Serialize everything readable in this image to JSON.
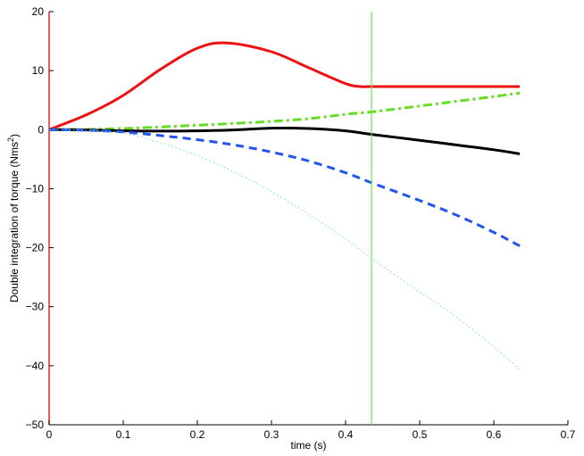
{
  "chart_data": {
    "type": "line",
    "xlabel": "time (s)",
    "ylabel_prefix": "Double integration of torque (Nms",
    "ylabel_sup": "2",
    "ylabel_suffix": ")",
    "xlim": [
      0,
      0.7
    ],
    "ylim": [
      -50,
      20
    ],
    "xticks": [
      0,
      0.1,
      0.2,
      0.3,
      0.4,
      0.5,
      0.6,
      0.7
    ],
    "xtick_labels": [
      "0",
      "0.1",
      "0.2",
      "0.3",
      "0.4",
      "0.5",
      "0.6",
      "0.7"
    ],
    "yticks": [
      -50,
      -40,
      -30,
      -20,
      -10,
      0,
      10,
      20
    ],
    "ytick_labels": [
      "−50",
      "−40",
      "−30",
      "−20",
      "−10",
      "0",
      "10",
      "20"
    ],
    "grid": false,
    "vertical_line": {
      "x": 0.435,
      "color": "#66ee44"
    },
    "series": [
      {
        "color": "#ee1111",
        "style": "solid",
        "width": 3,
        "x": [
          0,
          0.05,
          0.1,
          0.15,
          0.2,
          0.24,
          0.3,
          0.35,
          0.4,
          0.42,
          0.435,
          0.5,
          0.55,
          0.6,
          0.635
        ],
        "y": [
          0,
          2.5,
          5.8,
          10.2,
          13.8,
          14.7,
          13.2,
          10.5,
          7.8,
          7.3,
          7.3,
          7.3,
          7.3,
          7.3,
          7.3
        ]
      },
      {
        "color": "#66dd22",
        "style": "dashdot",
        "width": 3,
        "x": [
          0,
          0.05,
          0.1,
          0.15,
          0.2,
          0.25,
          0.3,
          0.35,
          0.4,
          0.435,
          0.5,
          0.55,
          0.6,
          0.635
        ],
        "y": [
          0,
          0.05,
          0.2,
          0.45,
          0.75,
          1.05,
          1.4,
          1.85,
          2.6,
          3.0,
          4.0,
          4.8,
          5.6,
          6.2
        ]
      },
      {
        "color": "#000000",
        "style": "solid",
        "width": 3,
        "x": [
          0,
          0.05,
          0.1,
          0.15,
          0.2,
          0.25,
          0.3,
          0.35,
          0.4,
          0.435,
          0.5,
          0.55,
          0.6,
          0.635
        ],
        "y": [
          0,
          -0.05,
          -0.2,
          -0.25,
          -0.2,
          -0.05,
          0.25,
          0.2,
          -0.2,
          -0.8,
          -1.8,
          -2.6,
          -3.4,
          -4.1
        ]
      },
      {
        "color": "#2255ee",
        "style": "dashed",
        "width": 3,
        "x": [
          0,
          0.05,
          0.1,
          0.15,
          0.2,
          0.25,
          0.3,
          0.35,
          0.4,
          0.435,
          0.5,
          0.55,
          0.6,
          0.635
        ],
        "y": [
          0,
          -0.1,
          -0.4,
          -1.0,
          -1.7,
          -2.6,
          -3.8,
          -5.3,
          -7.3,
          -9.0,
          -12.0,
          -14.5,
          -17.4,
          -19.7
        ]
      },
      {
        "color": "#66dddd",
        "style": "dotted",
        "width": 1,
        "x": [
          0,
          0.05,
          0.1,
          0.15,
          0.2,
          0.25,
          0.3,
          0.35,
          0.4,
          0.435,
          0.5,
          0.55,
          0.6,
          0.635
        ],
        "y": [
          0,
          -0.1,
          -0.6,
          -2.2,
          -4.4,
          -7.2,
          -10.5,
          -14.3,
          -18.5,
          -21.8,
          -27.5,
          -31.8,
          -36.8,
          -40.7
        ]
      }
    ]
  }
}
